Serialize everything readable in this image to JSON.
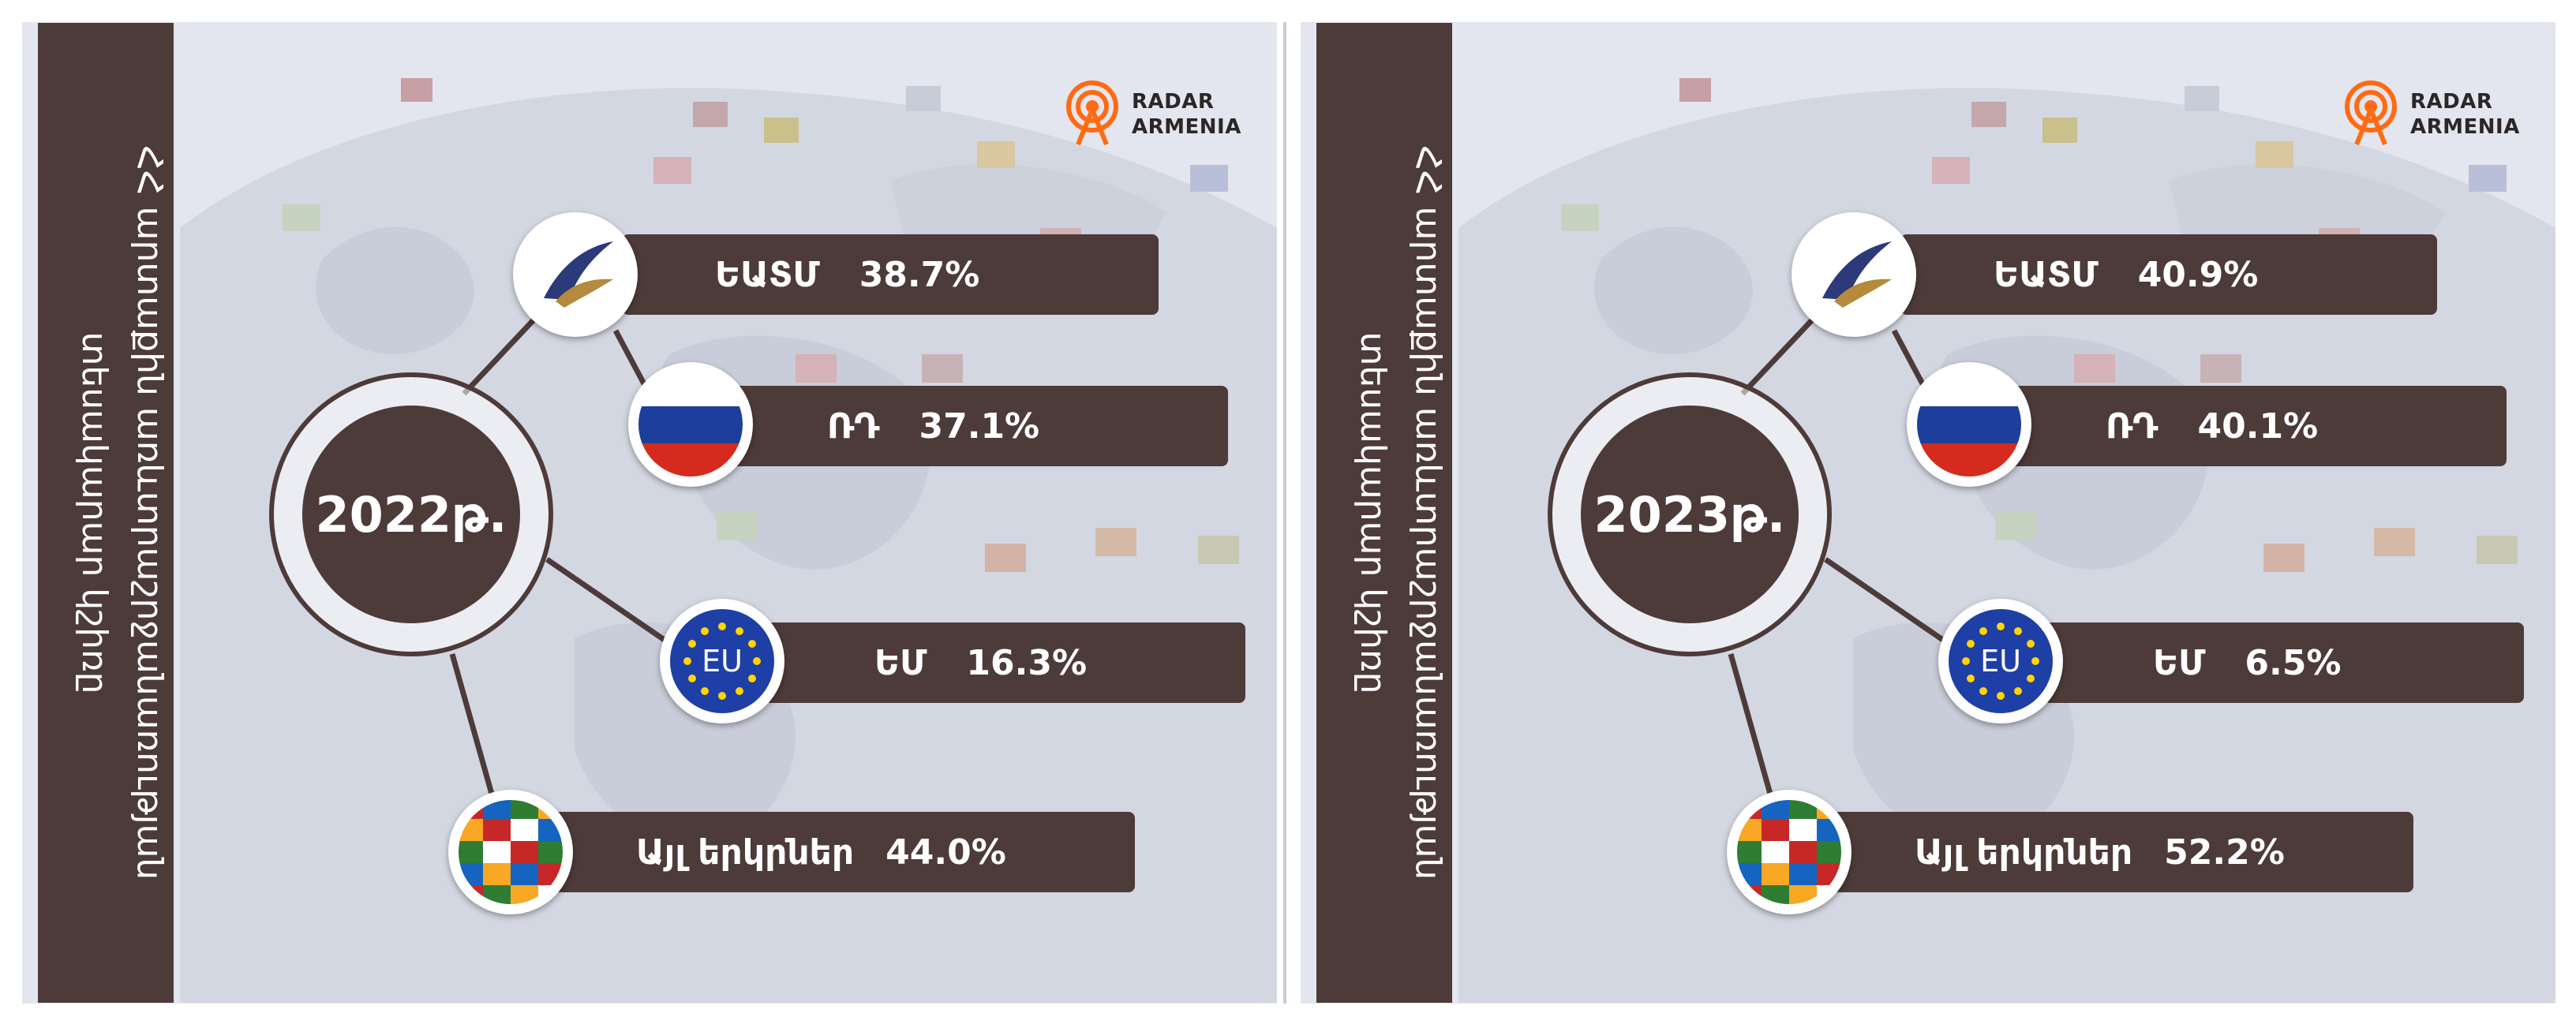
{
  "panels": [
    {
      "side_title_line1": "ՀՀ արտաքին առևտրաշրջանառության",
      "side_title_line2": "տեսակարար կշիռը",
      "year": "2022թ.",
      "logo_line1": "RADAR",
      "logo_line2": "ARMENIA",
      "items": [
        {
          "label": "ԵԱՏՄ",
          "value": "38.7%",
          "icon": "eaeu-emblem-icon"
        },
        {
          "label": "ՌԴ",
          "value": "37.1%",
          "icon": "russia-flag-icon"
        },
        {
          "label": "ԵՄ",
          "value": "16.3%",
          "icon": "eu-flag-icon",
          "badge_text": "EU"
        },
        {
          "label": "Այլ երկրներ",
          "value": "44.0%",
          "icon": "world-flags-globe-icon"
        }
      ]
    },
    {
      "side_title_line1": "ՀՀ արտաքին առևտրաշրջանառության",
      "side_title_line2": "տեսակարար կշիռը",
      "year": "2023թ.",
      "logo_line1": "RADAR",
      "logo_line2": "ARMENIA",
      "items": [
        {
          "label": "ԵԱՏՄ",
          "value": "40.9%",
          "icon": "eaeu-emblem-icon"
        },
        {
          "label": "ՌԴ",
          "value": "40.1%",
          "icon": "russia-flag-icon"
        },
        {
          "label": "ԵՄ",
          "value": "6.5%",
          "icon": "eu-flag-icon",
          "badge_text": "EU"
        },
        {
          "label": "Այլ երկրներ",
          "value": "52.2%",
          "icon": "world-flags-globe-icon"
        }
      ]
    }
  ],
  "colors": {
    "bar": "#4d3b39",
    "accent_logo": "#ff6a13"
  }
}
